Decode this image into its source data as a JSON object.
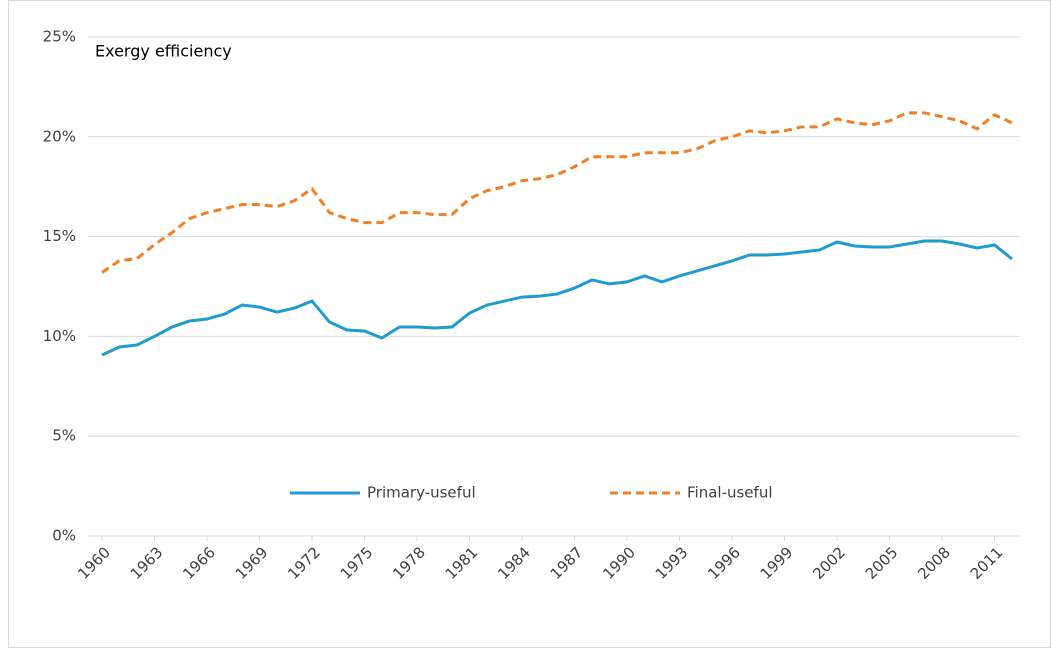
{
  "chart_data": {
    "type": "line",
    "title": "Exergy efficiency",
    "x": [
      1960,
      1961,
      1962,
      1963,
      1964,
      1965,
      1966,
      1967,
      1968,
      1969,
      1970,
      1971,
      1972,
      1973,
      1974,
      1975,
      1976,
      1977,
      1978,
      1979,
      1980,
      1981,
      1982,
      1983,
      1984,
      1985,
      1986,
      1987,
      1988,
      1989,
      1990,
      1991,
      1992,
      1993,
      1994,
      1995,
      1996,
      1997,
      1998,
      1999,
      2000,
      2001,
      2002,
      2003,
      2004,
      2005,
      2006,
      2007,
      2008,
      2009,
      2010,
      2011,
      2012
    ],
    "series": [
      {
        "name": "Primary-useful",
        "color": "#1f9bd1",
        "dash": false,
        "values": [
          9.07,
          9.47,
          9.57,
          10.0,
          10.47,
          10.77,
          10.87,
          11.12,
          11.57,
          11.47,
          11.22,
          11.42,
          11.77,
          10.72,
          10.32,
          10.27,
          9.92,
          10.47,
          10.47,
          10.42,
          10.47,
          11.17,
          11.57,
          11.77,
          11.97,
          12.02,
          12.12,
          12.42,
          12.83,
          12.63,
          12.73,
          13.03,
          12.73,
          13.03,
          13.28,
          13.53,
          13.78,
          14.08,
          14.08,
          14.13,
          14.23,
          14.33,
          14.73,
          14.53,
          14.48,
          14.48,
          14.63,
          14.78,
          14.78,
          14.63,
          14.43,
          14.58,
          13.88
        ]
      },
      {
        "name": "Final-useful",
        "color": "#f07f26",
        "dash": true,
        "values": [
          13.2,
          13.8,
          13.9,
          14.6,
          15.2,
          15.9,
          16.2,
          16.4,
          16.6,
          16.6,
          16.5,
          16.8,
          17.4,
          16.2,
          15.9,
          15.7,
          15.7,
          16.2,
          16.2,
          16.1,
          16.1,
          16.9,
          17.3,
          17.5,
          17.8,
          17.9,
          18.1,
          18.5,
          19.0,
          19.0,
          19.0,
          19.2,
          19.2,
          19.2,
          19.4,
          19.8,
          20.0,
          20.3,
          20.2,
          20.3,
          20.5,
          20.5,
          20.9,
          20.7,
          20.6,
          20.8,
          21.2,
          21.2,
          21.0,
          20.8,
          20.4,
          21.1,
          20.7
        ]
      }
    ],
    "xlim": [
      1960,
      2012
    ],
    "xticks": [
      1960,
      1963,
      1966,
      1969,
      1972,
      1975,
      1978,
      1981,
      1984,
      1987,
      1990,
      1993,
      1996,
      1999,
      2002,
      2005,
      2008,
      2011
    ],
    "ylim": [
      0,
      25
    ],
    "yticks": [
      {
        "value": 0,
        "label": "0%"
      },
      {
        "value": 5,
        "label": "5%"
      },
      {
        "value": 10,
        "label": "10%"
      },
      {
        "value": 15,
        "label": "15%"
      },
      {
        "value": 20,
        "label": "20%"
      },
      {
        "value": 25,
        "label": "25%"
      }
    ],
    "grid": true
  }
}
